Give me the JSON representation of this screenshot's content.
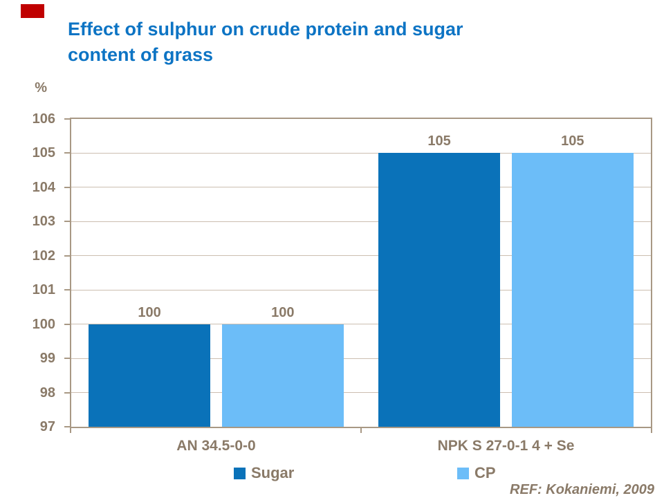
{
  "slide": {
    "title_lines": [
      "Effect of sulphur on crude protein and sugar",
      "content of grass"
    ],
    "ref": "REF: Kokaniemi, 2009"
  },
  "colors": {
    "title": "#0d74c4",
    "sugar": "#0a72b9",
    "cp": "#6cbdf8",
    "axis_text": "#8a7a68",
    "grid": "#ccbeb0",
    "border": "#a89884",
    "flag_red": "#c00000",
    "background": "#ffffff"
  },
  "chart_data": {
    "type": "bar",
    "title": "Effect of sulphur on crude protein and sugar content of grass",
    "categories": [
      "AN 34.5-0-0",
      "NPK S 27-0-1 4 + Se"
    ],
    "series": [
      {
        "name": "Sugar",
        "color_key": "sugar",
        "values": [
          100,
          105
        ]
      },
      {
        "name": "CP",
        "color_key": "cp",
        "values": [
          100,
          105
        ]
      }
    ],
    "ylabel": "%",
    "xlabel": "",
    "ylim": [
      97,
      106
    ],
    "yticks": [
      97,
      98,
      99,
      100,
      101,
      102,
      103,
      104,
      105,
      106
    ],
    "grid": true,
    "data_labels": true,
    "legend_position": "bottom",
    "annotation": "REF: Kokaniemi, 2009"
  }
}
